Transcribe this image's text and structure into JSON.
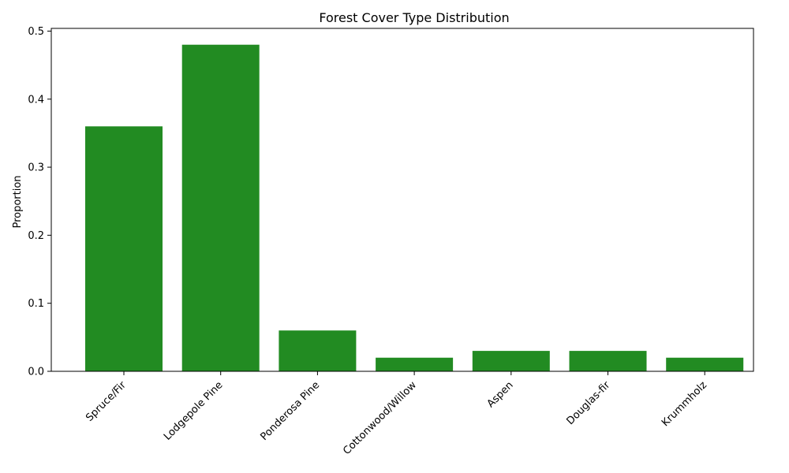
{
  "chart_data": {
    "type": "bar",
    "title": "Forest Cover Type Distribution",
    "xlabel": "",
    "ylabel": "Proportion",
    "categories": [
      "Spruce/Fir",
      "Lodgepole Pine",
      "Ponderosa Pine",
      "Cottonwood/Willow",
      "Aspen",
      "Douglas-fir",
      "Krummholz"
    ],
    "values": [
      0.36,
      0.48,
      0.06,
      0.02,
      0.03,
      0.03,
      0.02
    ],
    "ylim": [
      0,
      0.504
    ],
    "yticks": [
      "0.0",
      "0.1",
      "0.2",
      "0.3",
      "0.4",
      "0.5"
    ],
    "bar_color": "#228b22",
    "grid": false,
    "legend": "none"
  }
}
